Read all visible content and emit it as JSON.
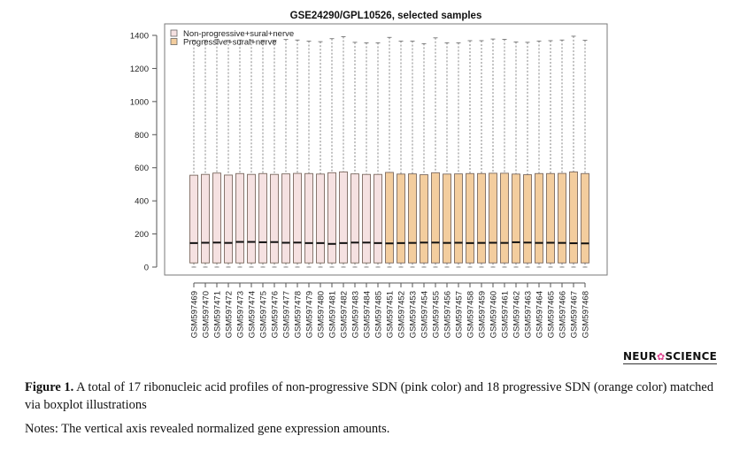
{
  "chart_data": {
    "type": "boxplot",
    "title": "GSE24290/GPL10526, selected samples",
    "xlabel": "",
    "ylabel": "",
    "ylim": [
      0,
      1400
    ],
    "yticks": [
      0,
      200,
      400,
      600,
      800,
      1000,
      1200,
      1400
    ],
    "grid": false,
    "legend_position": "top-left",
    "legend": [
      {
        "label": "Non-progressive+sural+nerve",
        "color": "#f5e1e1"
      },
      {
        "label": "Progressive+sural+nerve",
        "color": "#f3cd9e"
      }
    ],
    "groups": [
      {
        "name": "Non-progressive+sural+nerve",
        "color": "#f5e1e1"
      },
      {
        "name": "Progressive+sural+nerve",
        "color": "#f3cd9e"
      }
    ],
    "samples": [
      {
        "label": "GSM597469",
        "group": 0,
        "min": 0,
        "q1": 25,
        "median": 145,
        "q3": 555,
        "max": 1370
      },
      {
        "label": "GSM597470",
        "group": 0,
        "min": 0,
        "q1": 25,
        "median": 147,
        "q3": 560,
        "max": 1370
      },
      {
        "label": "GSM597471",
        "group": 0,
        "min": 0,
        "q1": 25,
        "median": 148,
        "q3": 568,
        "max": 1375
      },
      {
        "label": "GSM597472",
        "group": 0,
        "min": 0,
        "q1": 25,
        "median": 146,
        "q3": 556,
        "max": 1370
      },
      {
        "label": "GSM597473",
        "group": 0,
        "min": 0,
        "q1": 25,
        "median": 152,
        "q3": 565,
        "max": 1372
      },
      {
        "label": "GSM597474",
        "group": 0,
        "min": 0,
        "q1": 25,
        "median": 152,
        "q3": 560,
        "max": 1372
      },
      {
        "label": "GSM597475",
        "group": 0,
        "min": 0,
        "q1": 25,
        "median": 150,
        "q3": 565,
        "max": 1370
      },
      {
        "label": "GSM597476",
        "group": 0,
        "min": 0,
        "q1": 25,
        "median": 151,
        "q3": 560,
        "max": 1370
      },
      {
        "label": "GSM597477",
        "group": 0,
        "min": 0,
        "q1": 25,
        "median": 147,
        "q3": 563,
        "max": 1375
      },
      {
        "label": "GSM597478",
        "group": 0,
        "min": 0,
        "q1": 25,
        "median": 148,
        "q3": 566,
        "max": 1372
      },
      {
        "label": "GSM597479",
        "group": 0,
        "min": 0,
        "q1": 25,
        "median": 145,
        "q3": 565,
        "max": 1365
      },
      {
        "label": "GSM597480",
        "group": 0,
        "min": 0,
        "q1": 25,
        "median": 145,
        "q3": 562,
        "max": 1362
      },
      {
        "label": "GSM597481",
        "group": 0,
        "min": 0,
        "q1": 25,
        "median": 140,
        "q3": 570,
        "max": 1380
      },
      {
        "label": "GSM597482",
        "group": 0,
        "min": 0,
        "q1": 25,
        "median": 145,
        "q3": 575,
        "max": 1392
      },
      {
        "label": "GSM597483",
        "group": 0,
        "min": 0,
        "q1": 25,
        "median": 148,
        "q3": 563,
        "max": 1358
      },
      {
        "label": "GSM597484",
        "group": 0,
        "min": 0,
        "q1": 25,
        "median": 148,
        "q3": 560,
        "max": 1355
      },
      {
        "label": "GSM597485",
        "group": 0,
        "min": 0,
        "q1": 25,
        "median": 145,
        "q3": 560,
        "max": 1355
      },
      {
        "label": "GSM597451",
        "group": 1,
        "min": 0,
        "q1": 25,
        "median": 143,
        "q3": 572,
        "max": 1388
      },
      {
        "label": "GSM597452",
        "group": 1,
        "min": 0,
        "q1": 25,
        "median": 145,
        "q3": 562,
        "max": 1365
      },
      {
        "label": "GSM597453",
        "group": 1,
        "min": 0,
        "q1": 25,
        "median": 146,
        "q3": 563,
        "max": 1365
      },
      {
        "label": "GSM597454",
        "group": 1,
        "min": 0,
        "q1": 25,
        "median": 148,
        "q3": 558,
        "max": 1350
      },
      {
        "label": "GSM597455",
        "group": 1,
        "min": 0,
        "q1": 25,
        "median": 148,
        "q3": 570,
        "max": 1385
      },
      {
        "label": "GSM597456",
        "group": 1,
        "min": 0,
        "q1": 25,
        "median": 146,
        "q3": 562,
        "max": 1355
      },
      {
        "label": "GSM597457",
        "group": 1,
        "min": 0,
        "q1": 25,
        "median": 147,
        "q3": 563,
        "max": 1355
      },
      {
        "label": "GSM597458",
        "group": 1,
        "min": 0,
        "q1": 25,
        "median": 145,
        "q3": 565,
        "max": 1368
      },
      {
        "label": "GSM597459",
        "group": 1,
        "min": 0,
        "q1": 25,
        "median": 146,
        "q3": 565,
        "max": 1368
      },
      {
        "label": "GSM597460",
        "group": 1,
        "min": 0,
        "q1": 25,
        "median": 147,
        "q3": 567,
        "max": 1378
      },
      {
        "label": "GSM597461",
        "group": 1,
        "min": 0,
        "q1": 25,
        "median": 146,
        "q3": 567,
        "max": 1376
      },
      {
        "label": "GSM597462",
        "group": 1,
        "min": 0,
        "q1": 25,
        "median": 150,
        "q3": 562,
        "max": 1360
      },
      {
        "label": "GSM597463",
        "group": 1,
        "min": 0,
        "q1": 25,
        "median": 148,
        "q3": 558,
        "max": 1358
      },
      {
        "label": "GSM597464",
        "group": 1,
        "min": 0,
        "q1": 25,
        "median": 146,
        "q3": 565,
        "max": 1366
      },
      {
        "label": "GSM597465",
        "group": 1,
        "min": 0,
        "q1": 25,
        "median": 147,
        "q3": 565,
        "max": 1368
      },
      {
        "label": "GSM597466",
        "group": 1,
        "min": 0,
        "q1": 25,
        "median": 146,
        "q3": 566,
        "max": 1372
      },
      {
        "label": "GSM597467",
        "group": 1,
        "min": 0,
        "q1": 25,
        "median": 144,
        "q3": 575,
        "max": 1395
      },
      {
        "label": "GSM597468",
        "group": 1,
        "min": 0,
        "q1": 25,
        "median": 143,
        "q3": 565,
        "max": 1370
      }
    ]
  },
  "logo": {
    "before": "NEUR",
    "icon": "flower-icon",
    "after": "SCIENCE"
  },
  "caption": {
    "label": "Figure 1.",
    "text": " A total of 17 ribonucleic acid profiles of non-progressive SDN (pink color) and 18 progressive SDN (orange color) matched via boxplot illustrations"
  },
  "notes": "Notes: The vertical axis revealed normalized gene expression amounts."
}
